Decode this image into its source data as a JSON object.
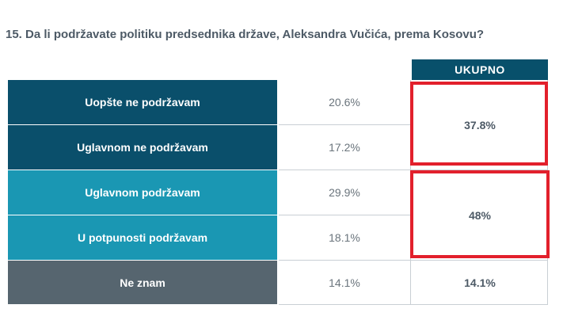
{
  "question": "15. Da li podržavate politiku predsednika države, Aleksandra Vučića, prema Kosovu?",
  "colors": {
    "header_bg": "#08506b",
    "dark_blue": "#0a4f6b",
    "teal": "#1a97b3",
    "gray": "#56656f",
    "highlight": "#e2202c"
  },
  "chart_data": {
    "type": "table",
    "title": "15. Da li podržavate politiku predsednika države, Aleksandra Vučića, prema Kosovu?",
    "columns": [
      "",
      "",
      "UKUPNO"
    ],
    "rows": [
      {
        "label": "Uopšte ne podržavam",
        "value": "20.6%",
        "group": "ne"
      },
      {
        "label": "Uglavnom ne podržavam",
        "value": "17.2%",
        "group": "ne"
      },
      {
        "label": "Uglavnom podržavam",
        "value": "29.9%",
        "group": "da"
      },
      {
        "label": "U potpunosti podržavam",
        "value": "18.1%",
        "group": "da"
      },
      {
        "label": "Ne znam",
        "value": "14.1%",
        "group": "neznam"
      }
    ],
    "values": [
      20.6,
      17.2,
      29.9,
      18.1,
      14.1
    ],
    "totals": [
      {
        "group": "ne",
        "value": "37.8%"
      },
      {
        "group": "da",
        "value": "48%"
      },
      {
        "group": "neznam",
        "value": "14.1%"
      }
    ],
    "total_header": "UKUPNO",
    "highlighted_totals": [
      "ne",
      "da"
    ]
  }
}
